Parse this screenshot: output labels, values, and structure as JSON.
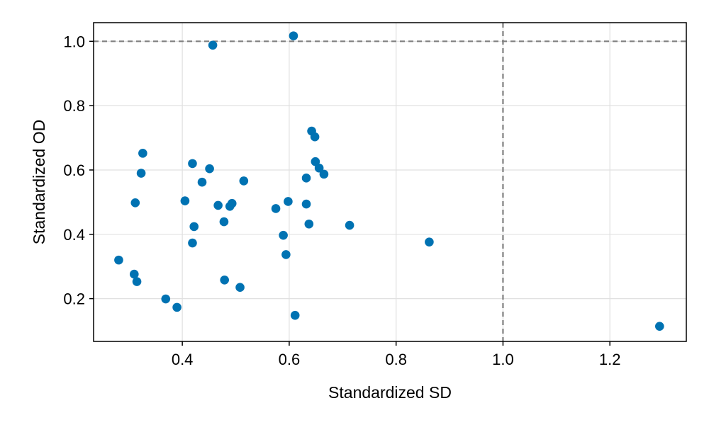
{
  "chart_data": {
    "type": "scatter",
    "title": "",
    "xlabel": "Standardized SD",
    "ylabel": "Standardized OD",
    "xlim": [
      0.234,
      1.343
    ],
    "ylim": [
      0.067,
      1.058
    ],
    "xticks": [
      0.4,
      0.6,
      0.8,
      1.0,
      1.2
    ],
    "xtick_labels": [
      "0.4",
      "0.6",
      "0.8",
      "1.0",
      "1.2"
    ],
    "yticks": [
      0.2,
      0.4,
      0.6,
      0.8,
      1.0
    ],
    "ytick_labels": [
      "0.2",
      "0.4",
      "0.6",
      "0.8",
      "1.0"
    ],
    "grid": true,
    "reference_lines": [
      {
        "orientation": "horizontal",
        "value": 1.0,
        "style": "dashed"
      },
      {
        "orientation": "vertical",
        "value": 1.0,
        "style": "dashed"
      }
    ],
    "colors": {
      "points": "#0072b2",
      "reference_line": "#808080",
      "grid": "#e0e0e0",
      "frame": "#000000"
    },
    "points": [
      {
        "x": 0.608,
        "y": 1.017
      },
      {
        "x": 0.457,
        "y": 0.988
      },
      {
        "x": 0.642,
        "y": 0.721
      },
      {
        "x": 0.648,
        "y": 0.703
      },
      {
        "x": 0.326,
        "y": 0.652
      },
      {
        "x": 0.649,
        "y": 0.626
      },
      {
        "x": 0.419,
        "y": 0.62
      },
      {
        "x": 0.656,
        "y": 0.606
      },
      {
        "x": 0.451,
        "y": 0.604
      },
      {
        "x": 0.323,
        "y": 0.59
      },
      {
        "x": 0.665,
        "y": 0.587
      },
      {
        "x": 0.632,
        "y": 0.575
      },
      {
        "x": 0.515,
        "y": 0.566
      },
      {
        "x": 0.437,
        "y": 0.562
      },
      {
        "x": 0.405,
        "y": 0.504
      },
      {
        "x": 0.598,
        "y": 0.502
      },
      {
        "x": 0.312,
        "y": 0.498
      },
      {
        "x": 0.632,
        "y": 0.494
      },
      {
        "x": 0.493,
        "y": 0.496
      },
      {
        "x": 0.467,
        "y": 0.49
      },
      {
        "x": 0.489,
        "y": 0.487
      },
      {
        "x": 0.575,
        "y": 0.48
      },
      {
        "x": 0.478,
        "y": 0.439
      },
      {
        "x": 0.637,
        "y": 0.432
      },
      {
        "x": 0.713,
        "y": 0.428
      },
      {
        "x": 0.422,
        "y": 0.424
      },
      {
        "x": 0.589,
        "y": 0.397
      },
      {
        "x": 0.862,
        "y": 0.376
      },
      {
        "x": 0.419,
        "y": 0.373
      },
      {
        "x": 0.594,
        "y": 0.337
      },
      {
        "x": 0.281,
        "y": 0.32
      },
      {
        "x": 0.31,
        "y": 0.276
      },
      {
        "x": 0.479,
        "y": 0.258
      },
      {
        "x": 0.315,
        "y": 0.253
      },
      {
        "x": 0.508,
        "y": 0.235
      },
      {
        "x": 0.369,
        "y": 0.199
      },
      {
        "x": 0.39,
        "y": 0.173
      },
      {
        "x": 0.611,
        "y": 0.148
      },
      {
        "x": 1.293,
        "y": 0.114
      }
    ]
  }
}
